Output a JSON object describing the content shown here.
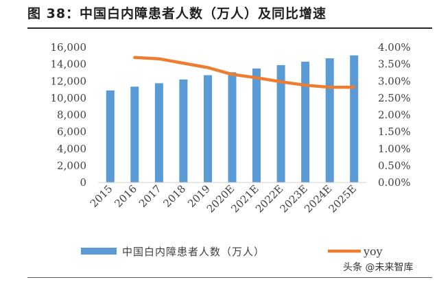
{
  "title": "图 38：中国白内障患者人数（万人）及同比增速",
  "watermark": "头条 @未来智库",
  "chart_data": {
    "type": "bar",
    "categories": [
      "2015",
      "2016",
      "2017",
      "2018",
      "2019",
      "2020E",
      "2021E",
      "2022E",
      "2023E",
      "2024E",
      "2025E"
    ],
    "series": [
      {
        "name": "中国白内障患者人数（万人）",
        "type": "bar",
        "axis": "left",
        "color": "#5b9bd5",
        "values": [
          10900,
          11350,
          11750,
          12200,
          12700,
          13050,
          13500,
          13900,
          14300,
          14700,
          15050
        ]
      },
      {
        "name": "yoy",
        "type": "line",
        "axis": "right",
        "color": "#ed7d31",
        "values": [
          null,
          0.037,
          0.0366,
          0.0353,
          0.034,
          0.032,
          0.031,
          0.0298,
          0.0288,
          0.0282,
          0.0282
        ]
      }
    ],
    "y_left": {
      "min": 0,
      "max": 16000,
      "ticks": [
        "0",
        "2,000",
        "4,000",
        "6,000",
        "8,000",
        "10,000",
        "12,000",
        "14,000",
        "16,000"
      ]
    },
    "y_right": {
      "min": 0,
      "max": 0.04,
      "ticks": [
        "0.00%",
        "0.50%",
        "1.00%",
        "1.50%",
        "2.00%",
        "2.50%",
        "3.00%",
        "3.50%",
        "4.00%"
      ]
    },
    "grid": false,
    "legend_position": "bottom"
  }
}
